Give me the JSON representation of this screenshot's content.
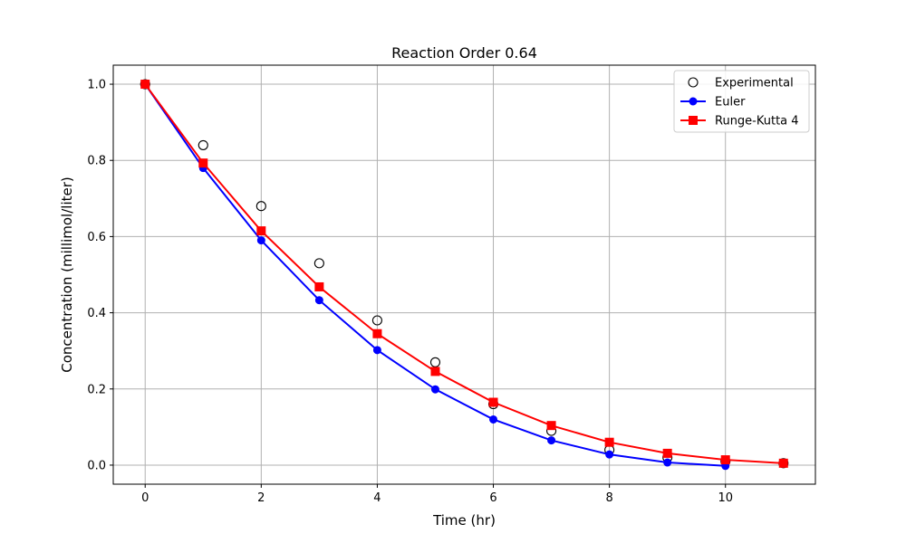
{
  "chart_data": {
    "type": "line",
    "title": "Reaction Order 0.64",
    "xlabel": "Time (hr)",
    "ylabel": "Concentration (millimol/liter)",
    "xlim": [
      -0.55,
      11.55
    ],
    "ylim": [
      -0.05,
      1.05
    ],
    "xticks": [
      0,
      2,
      4,
      6,
      8,
      10
    ],
    "yticks": [
      0.0,
      0.2,
      0.4,
      0.6,
      0.8,
      1.0
    ],
    "xtick_labels": [
      "0",
      "2",
      "4",
      "6",
      "8",
      "10"
    ],
    "ytick_labels": [
      "0.0",
      "0.2",
      "0.4",
      "0.6",
      "0.8",
      "1.0"
    ],
    "grid": true,
    "legend_position": "top-right",
    "series": [
      {
        "name": "Experimental",
        "style": "open-circle",
        "color": "#000000",
        "x": [
          0,
          1,
          2,
          3,
          4,
          5,
          6,
          7,
          8,
          9,
          10,
          11
        ],
        "y": [
          1.0,
          0.84,
          0.68,
          0.53,
          0.38,
          0.27,
          0.16,
          0.09,
          0.04,
          0.02,
          0.01,
          0.005
        ]
      },
      {
        "name": "Euler",
        "style": "line-circle",
        "color": "#0000ff",
        "x": [
          0,
          1,
          2,
          3,
          4,
          5,
          6,
          7,
          8,
          9,
          10
        ],
        "y": [
          1.0,
          0.78,
          0.59,
          0.433,
          0.302,
          0.199,
          0.12,
          0.065,
          0.028,
          0.007,
          -0.002
        ]
      },
      {
        "name": "Runge-Kutta 4",
        "style": "line-square",
        "color": "#ff0000",
        "x": [
          0,
          1,
          2,
          3,
          4,
          5,
          6,
          7,
          8,
          9,
          10,
          11
        ],
        "y": [
          1.0,
          0.793,
          0.615,
          0.468,
          0.345,
          0.246,
          0.165,
          0.104,
          0.06,
          0.031,
          0.014,
          0.005
        ]
      }
    ]
  }
}
